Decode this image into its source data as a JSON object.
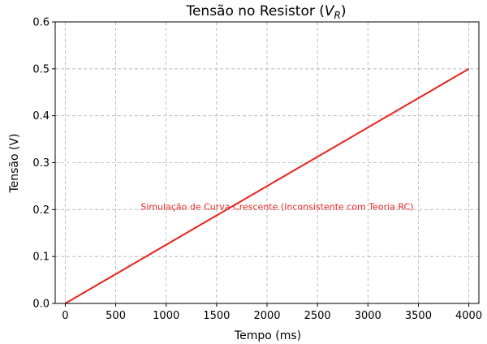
{
  "chart_data": {
    "type": "line",
    "title": "Tensão no Resistor (",
    "title_math_base": "V",
    "title_math_sub": "R",
    "title_close": ")",
    "xlabel": "Tempo (ms)",
    "ylabel": "Tensão (V)",
    "xlim": [
      -100,
      4100
    ],
    "ylim": [
      0.0,
      0.6
    ],
    "xticks": [
      0,
      500,
      1000,
      1500,
      2000,
      2500,
      3000,
      3500,
      4000
    ],
    "xtick_labels": [
      "0",
      "500",
      "1000",
      "1500",
      "2000",
      "2500",
      "3000",
      "3500",
      "4000"
    ],
    "yticks": [
      0.0,
      0.1,
      0.2,
      0.3,
      0.4,
      0.5,
      0.6
    ],
    "ytick_labels": [
      "0.0",
      "0.1",
      "0.2",
      "0.3",
      "0.4",
      "0.5",
      "0.6"
    ],
    "grid": true,
    "series": [
      {
        "color": "#e8251f",
        "x": [
          0,
          4000
        ],
        "y": [
          0.0,
          0.5
        ]
      }
    ],
    "annotations": [
      {
        "text": "Simulação de Curva Crescente (Inconsistente com Teoria RC)",
        "x": 2100,
        "y": 0.205,
        "color": "#e8251f"
      }
    ]
  }
}
